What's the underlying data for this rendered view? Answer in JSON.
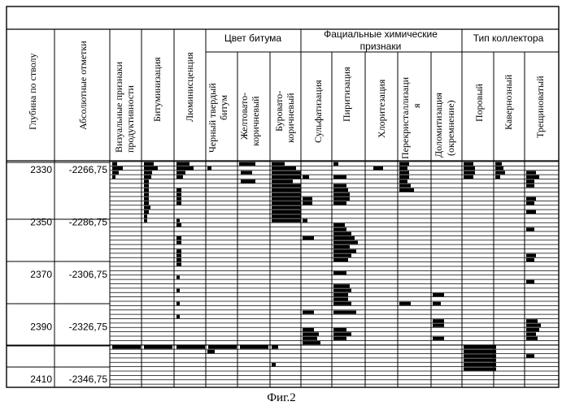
{
  "header": {
    "col_depth": "Глубина по стволу",
    "col_abs": "Абсолютные отметки",
    "col_visual": "Визуальные признаки продуктивности",
    "col_bitum": "Битуминизация",
    "col_lum": "Люминисценция",
    "group_color": "Цвет битума",
    "col_black": "Черный твердый битум",
    "col_yellow": "Желтовато-коричневый",
    "col_brown": "Буровато-коричневый",
    "group_facial": "Фациальные химические признаки",
    "col_sulf": "Сульфатизация",
    "col_pyr": "Пиритизация",
    "col_chlor": "Хлоритезация",
    "col_recryst": "Перекристаллизация",
    "col_dolom": "Доломитизация (окремнение)",
    "group_collector": "Тип коллектора",
    "col_pore": "Поровый",
    "col_cavern": "Кавернозный",
    "col_fract": "Трещиноватый"
  },
  "depths": [
    "2330",
    "2350",
    "2370",
    "2390",
    "2410"
  ],
  "abs_marks": [
    "-2266,75",
    "-2286,75",
    "-2306,75",
    "-2326,75",
    "-2346,75"
  ],
  "bars": {
    "visual": [
      [
        0,
        3,
        6
      ],
      [
        1,
        3,
        13
      ],
      [
        2,
        3,
        8
      ],
      [
        3,
        3,
        4
      ],
      [
        42,
        3,
        35
      ]
    ],
    "bitum": [
      [
        0,
        3,
        12
      ],
      [
        1,
        3,
        17
      ],
      [
        2,
        3,
        10
      ],
      [
        3,
        3,
        9
      ],
      [
        4,
        3,
        6
      ],
      [
        5,
        3,
        6
      ],
      [
        6,
        3,
        6
      ],
      [
        7,
        3,
        6
      ],
      [
        8,
        3,
        6
      ],
      [
        9,
        3,
        6
      ],
      [
        10,
        3,
        8
      ],
      [
        11,
        3,
        6
      ],
      [
        12,
        3,
        4
      ],
      [
        13,
        3,
        4
      ],
      [
        42,
        3,
        35
      ]
    ],
    "lum": [
      [
        0,
        3,
        16
      ],
      [
        1,
        3,
        21
      ],
      [
        2,
        3,
        11
      ],
      [
        3,
        3,
        8
      ],
      [
        6,
        3,
        6
      ],
      [
        7,
        3,
        6
      ],
      [
        8,
        3,
        6
      ],
      [
        9,
        3,
        6
      ],
      [
        13,
        3,
        4
      ],
      [
        14,
        3,
        6
      ],
      [
        17,
        3,
        6
      ],
      [
        18,
        3,
        6
      ],
      [
        20,
        3,
        6
      ],
      [
        21,
        3,
        6
      ],
      [
        22,
        3,
        6
      ],
      [
        23,
        3,
        6
      ],
      [
        26,
        3,
        4
      ],
      [
        29,
        3,
        4
      ],
      [
        32,
        3,
        4
      ],
      [
        35,
        3,
        4
      ],
      [
        42,
        3,
        35
      ]
    ],
    "black": [
      [
        1,
        2,
        5
      ],
      [
        42,
        3,
        35
      ],
      [
        43,
        2,
        9
      ]
    ],
    "yellow": [
      [
        0,
        2,
        20
      ],
      [
        2,
        4,
        14
      ],
      [
        4,
        4,
        18
      ],
      [
        42,
        3,
        35
      ]
    ],
    "brown": [
      [
        0,
        2,
        16
      ],
      [
        1,
        2,
        30
      ],
      [
        2,
        2,
        36
      ],
      [
        3,
        2,
        36
      ],
      [
        4,
        2,
        26
      ],
      [
        5,
        2,
        36
      ],
      [
        6,
        2,
        36
      ],
      [
        7,
        2,
        36
      ],
      [
        8,
        2,
        36
      ],
      [
        9,
        2,
        36
      ],
      [
        10,
        2,
        36
      ],
      [
        11,
        2,
        36
      ],
      [
        12,
        2,
        36
      ],
      [
        13,
        2,
        36
      ],
      [
        42,
        2,
        8
      ],
      [
        46,
        2,
        5
      ]
    ],
    "sulf": [
      [
        3,
        2,
        8
      ],
      [
        8,
        2,
        12
      ],
      [
        9,
        2,
        12
      ],
      [
        13,
        2,
        6
      ],
      [
        17,
        2,
        14
      ],
      [
        34,
        2,
        14
      ],
      [
        38,
        2,
        14
      ],
      [
        39,
        2,
        20
      ],
      [
        40,
        2,
        18
      ],
      [
        41,
        2,
        22
      ]
    ],
    "pyr": [
      [
        0,
        2,
        6
      ],
      [
        3,
        2,
        16
      ],
      [
        5,
        2,
        16
      ],
      [
        6,
        2,
        18
      ],
      [
        7,
        2,
        20
      ],
      [
        8,
        2,
        20
      ],
      [
        9,
        2,
        16
      ],
      [
        14,
        2,
        14
      ],
      [
        15,
        2,
        16
      ],
      [
        16,
        2,
        22
      ],
      [
        17,
        2,
        26
      ],
      [
        18,
        2,
        30
      ],
      [
        19,
        2,
        20
      ],
      [
        20,
        2,
        28
      ],
      [
        21,
        2,
        22
      ],
      [
        22,
        2,
        18
      ],
      [
        25,
        2,
        16
      ],
      [
        28,
        2,
        20
      ],
      [
        29,
        2,
        22
      ],
      [
        30,
        2,
        18
      ],
      [
        31,
        2,
        18
      ],
      [
        32,
        2,
        22
      ],
      [
        34,
        2,
        28
      ],
      [
        38,
        2,
        16
      ],
      [
        39,
        2,
        22
      ],
      [
        40,
        2,
        16
      ]
    ],
    "chlor": [
      [
        1,
        10,
        12
      ]
    ],
    "recryst": [
      [
        0,
        2,
        12
      ],
      [
        1,
        2,
        10
      ],
      [
        2,
        2,
        12
      ],
      [
        3,
        2,
        12
      ],
      [
        4,
        2,
        10
      ],
      [
        5,
        2,
        14
      ],
      [
        6,
        2,
        18
      ],
      [
        32,
        2,
        14
      ]
    ],
    "dolom": [
      [
        30,
        2,
        14
      ],
      [
        32,
        2,
        10
      ],
      [
        36,
        2,
        14
      ],
      [
        37,
        2,
        14
      ],
      [
        40,
        2,
        14
      ]
    ],
    "pore": [
      [
        0,
        2,
        12
      ],
      [
        1,
        2,
        14
      ],
      [
        2,
        2,
        14
      ],
      [
        3,
        2,
        12
      ],
      [
        42,
        2,
        40
      ],
      [
        43,
        2,
        40
      ],
      [
        44,
        2,
        40
      ],
      [
        45,
        2,
        40
      ],
      [
        46,
        2,
        40
      ],
      [
        47,
        2,
        40
      ]
    ],
    "cavern": [
      [
        0,
        2,
        8
      ],
      [
        1,
        2,
        10
      ],
      [
        2,
        2,
        12
      ],
      [
        3,
        2,
        6
      ]
    ],
    "fract": [
      [
        2,
        2,
        12
      ],
      [
        3,
        2,
        16
      ],
      [
        4,
        2,
        10
      ],
      [
        5,
        2,
        10
      ],
      [
        8,
        2,
        12
      ],
      [
        9,
        2,
        10
      ],
      [
        11,
        2,
        12
      ],
      [
        15,
        2,
        10
      ],
      [
        21,
        2,
        12
      ],
      [
        22,
        2,
        10
      ],
      [
        27,
        2,
        10
      ],
      [
        36,
        2,
        14
      ],
      [
        37,
        2,
        18
      ],
      [
        38,
        2,
        16
      ],
      [
        39,
        2,
        12
      ],
      [
        40,
        2,
        14
      ],
      [
        44,
        2,
        10
      ]
    ]
  },
  "caption": "Фиг.2"
}
